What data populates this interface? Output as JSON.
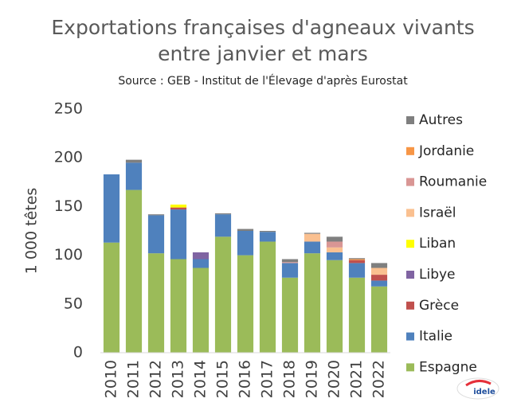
{
  "chart_data": {
    "type": "stacked_bar",
    "title": [
      "Exportations françaises d'agneaux vivants",
      "entre janvier et mars"
    ],
    "subtitle": "Source : GEB - Institut de l'Élevage d'après Eurostat",
    "y_label": "1 000 têtes",
    "logo": "idele",
    "categories": [
      "2010",
      "2011",
      "2012",
      "2013",
      "2014",
      "2015",
      "2016",
      "2017",
      "2018",
      "2019",
      "2020",
      "2021",
      "2022"
    ],
    "series": [
      {
        "name": "Espagne",
        "color": "#9bbb59",
        "values": [
          113,
          167,
          102,
          96,
          87,
          119,
          100,
          114,
          77,
          102,
          95,
          77,
          68
        ]
      },
      {
        "name": "Italie",
        "color": "#4f81bd",
        "values": [
          70,
          28,
          39,
          51,
          9,
          23,
          25,
          10,
          15,
          12,
          8,
          15,
          6
        ]
      },
      {
        "name": "Grèce",
        "color": "#c0504d",
        "values": [
          null,
          null,
          null,
          2,
          null,
          null,
          null,
          null,
          null,
          null,
          null,
          3,
          6
        ]
      },
      {
        "name": "Libye",
        "color": "#8064a2",
        "values": [
          null,
          null,
          null,
          null,
          7,
          null,
          null,
          null,
          null,
          null,
          null,
          null,
          null
        ]
      },
      {
        "name": "Liban",
        "color": "#ffff00",
        "values": [
          null,
          null,
          null,
          3,
          null,
          null,
          null,
          null,
          null,
          null,
          null,
          null,
          null
        ]
      },
      {
        "name": "Israël",
        "color": "#fac090",
        "values": [
          null,
          null,
          null,
          null,
          null,
          null,
          null,
          null,
          null,
          8,
          5,
          null,
          7
        ]
      },
      {
        "name": "Roumanie",
        "color": "#d99694",
        "values": [
          null,
          null,
          null,
          null,
          null,
          null,
          null,
          null,
          1,
          null,
          6,
          null,
          null
        ]
      },
      {
        "name": "Jordanie",
        "color": "#f79646",
        "values": [
          null,
          null,
          null,
          null,
          null,
          null,
          null,
          null,
          null,
          null,
          null,
          1,
          null
        ]
      },
      {
        "name": "Autres",
        "color": "#7f7f7f",
        "values": [
          null,
          3,
          1,
          null,
          null,
          1,
          2,
          1,
          3,
          1,
          5,
          1,
          5
        ]
      }
    ],
    "ylim": [
      0,
      250
    ],
    "yticks": [
      0,
      50,
      100,
      150,
      200,
      250
    ],
    "grid": false,
    "legend": "right"
  }
}
